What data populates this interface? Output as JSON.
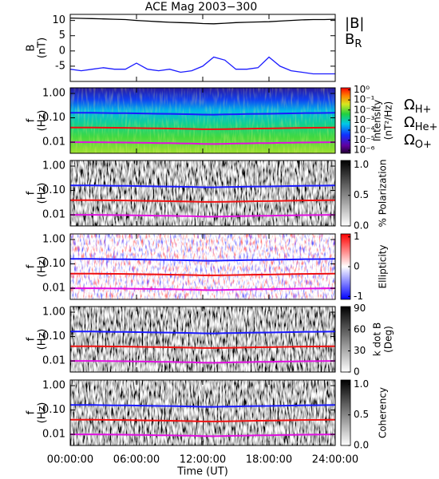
{
  "title": "ACE Mag 2003−300",
  "time_axis": {
    "xlim": [
      0,
      24
    ],
    "xlabel": "Time (UT)",
    "xticks": [
      {
        "value": 0,
        "label": "00:00:00"
      },
      {
        "value": 6,
        "label": "06:00:00"
      },
      {
        "value": 12,
        "label": "12:00:00"
      },
      {
        "value": 18,
        "label": "18:00:00"
      },
      {
        "value": 24,
        "label": "24:00:00"
      }
    ]
  },
  "gyrofrequencies": {
    "x": [
      0,
      1,
      2,
      3,
      4,
      5,
      6,
      7,
      8,
      9,
      10,
      11,
      12,
      13,
      14,
      15,
      16,
      17,
      18,
      19,
      20,
      21,
      22,
      23,
      24
    ],
    "series": [
      {
        "symbol": "Ω",
        "subscript": "H+",
        "color": "#1a1aff",
        "values": [
          0.16,
          0.16,
          0.16,
          0.158,
          0.156,
          0.155,
          0.152,
          0.15,
          0.147,
          0.145,
          0.142,
          0.14,
          0.136,
          0.135,
          0.138,
          0.14,
          0.143,
          0.145,
          0.146,
          0.15,
          0.152,
          0.155,
          0.157,
          0.158,
          0.16
        ]
      },
      {
        "symbol": "Ω",
        "subscript": "He+",
        "color": "#ee1111",
        "values": [
          0.04,
          0.04,
          0.04,
          0.0395,
          0.039,
          0.0388,
          0.038,
          0.0375,
          0.0368,
          0.0362,
          0.0355,
          0.035,
          0.034,
          0.0338,
          0.0345,
          0.035,
          0.0358,
          0.0362,
          0.0365,
          0.0375,
          0.038,
          0.0388,
          0.0392,
          0.0395,
          0.04
        ]
      },
      {
        "symbol": "Ω",
        "subscript": "O+",
        "color": "#e010e0",
        "values": [
          0.01,
          0.01,
          0.01,
          0.0099,
          0.0098,
          0.0097,
          0.0095,
          0.0094,
          0.0092,
          0.0091,
          0.0089,
          0.0088,
          0.0085,
          0.0084,
          0.0086,
          0.0088,
          0.0089,
          0.0091,
          0.0091,
          0.0094,
          0.0095,
          0.0097,
          0.0098,
          0.0099,
          0.01
        ]
      }
    ]
  },
  "chart_data": [
    {
      "type": "line",
      "ylabel": [
        "B",
        "(nT)"
      ],
      "ylim": [
        -10,
        12
      ],
      "yticks": [
        10,
        5,
        0,
        -5
      ],
      "x": [
        0,
        1,
        2,
        3,
        4,
        5,
        6,
        7,
        8,
        9,
        10,
        11,
        12,
        13,
        14,
        15,
        16,
        17,
        18,
        19,
        20,
        21,
        22,
        23,
        24
      ],
      "series": [
        {
          "symbol": "|B|",
          "color": "#000000",
          "values": [
            10.8,
            10.7,
            10.6,
            10.5,
            10.4,
            10.3,
            10.0,
            9.8,
            9.6,
            9.4,
            9.3,
            9.2,
            9.0,
            8.9,
            9.1,
            9.3,
            9.4,
            9.5,
            9.6,
            9.8,
            10.0,
            10.2,
            10.3,
            10.3,
            10.4
          ]
        },
        {
          "symbol": "B",
          "subscript": "R",
          "color": "#1a1aff",
          "values": [
            -6,
            -6.5,
            -6,
            -5.5,
            -6,
            -6,
            -4,
            -6,
            -6.5,
            -6,
            -7,
            -6.5,
            -5,
            -2,
            -3,
            -6,
            -6,
            -5.5,
            -2,
            -5,
            -6.5,
            -7,
            -7.5,
            -7.5,
            -7.5
          ]
        }
      ]
    },
    {
      "type": "spectrogram",
      "ylabel": [
        "f",
        "(Hz)"
      ],
      "log": true,
      "ylim": [
        0.0035,
        1.7
      ],
      "yticks": [
        {
          "value": 1,
          "label": "1.00"
        },
        {
          "value": 0.1,
          "label": "0.10"
        },
        {
          "value": 0.01,
          "label": "0.01"
        }
      ],
      "colorbar": {
        "label": [
          "Intensity",
          "(nT²/Hz)"
        ],
        "colormap": "rainbow",
        "log": true,
        "lim": [
          5e-07,
          1.6
        ],
        "ticks": [
          {
            "value": 1,
            "label": "10⁰"
          },
          {
            "value": 0.1,
            "label": "10⁻¹"
          },
          {
            "value": 0.01,
            "label": "10⁻²"
          },
          {
            "value": 0.001,
            "label": "10⁻³"
          },
          {
            "value": 0.0001,
            "label": "10⁻⁴"
          },
          {
            "value": 1e-05,
            "label": "10⁻⁵"
          },
          {
            "value": 1e-06,
            "label": "10⁻⁶"
          }
        ]
      },
      "legend": true
    },
    {
      "type": "spectrogram",
      "ylabel": [
        "f",
        "(Hz)"
      ],
      "log": true,
      "ylim": [
        0.0035,
        1.7
      ],
      "yticks": [
        {
          "value": 1,
          "label": "1.00"
        },
        {
          "value": 0.1,
          "label": "0.10"
        },
        {
          "value": 0.01,
          "label": "0.01"
        }
      ],
      "colorbar": {
        "label": [
          "% Polarization"
        ],
        "colormap": "gray",
        "lim": [
          0,
          1.07
        ],
        "ticks": [
          {
            "value": 1,
            "label": "1.0"
          },
          {
            "value": 0.5,
            "label": "0.5"
          },
          {
            "value": 0,
            "label": "0.0"
          }
        ]
      }
    },
    {
      "type": "spectrogram",
      "ylabel": [
        "f",
        "(Hz)"
      ],
      "log": true,
      "ylim": [
        0.0035,
        1.7
      ],
      "yticks": [
        {
          "value": 1,
          "label": "1.00"
        },
        {
          "value": 0.1,
          "label": "0.10"
        },
        {
          "value": 0.01,
          "label": "0.01"
        }
      ],
      "colorbar": {
        "label": [
          "Ellipticity"
        ],
        "colormap": "bwr",
        "lim": [
          -1.1,
          1.1
        ],
        "ticks": [
          1,
          0,
          -1
        ]
      }
    },
    {
      "type": "spectrogram",
      "ylabel": [
        "f",
        "(Hz)"
      ],
      "log": true,
      "ylim": [
        0.0035,
        1.7
      ],
      "yticks": [
        {
          "value": 1,
          "label": "1.00"
        },
        {
          "value": 0.1,
          "label": "0.10"
        },
        {
          "value": 0.01,
          "label": "0.01"
        }
      ],
      "colorbar": {
        "label": [
          "k dot B",
          "(Deg)"
        ],
        "colormap": "gray",
        "lim": [
          0,
          93
        ],
        "ticks": [
          90,
          60,
          30,
          0
        ]
      }
    },
    {
      "type": "spectrogram",
      "ylabel": [
        "f",
        "(Hz)"
      ],
      "log": true,
      "ylim": [
        0.0035,
        1.7
      ],
      "yticks": [
        {
          "value": 1,
          "label": "1.00"
        },
        {
          "value": 0.1,
          "label": "0.10"
        },
        {
          "value": 0.01,
          "label": "0.01"
        }
      ],
      "colorbar": {
        "label": [
          "Coherency"
        ],
        "colormap": "gray",
        "lim": [
          0,
          1.07
        ],
        "ticks": [
          {
            "value": 1,
            "label": "1.0"
          },
          {
            "value": 0.5,
            "label": "0.5"
          },
          {
            "value": 0,
            "label": "0.0"
          }
        ]
      }
    }
  ]
}
